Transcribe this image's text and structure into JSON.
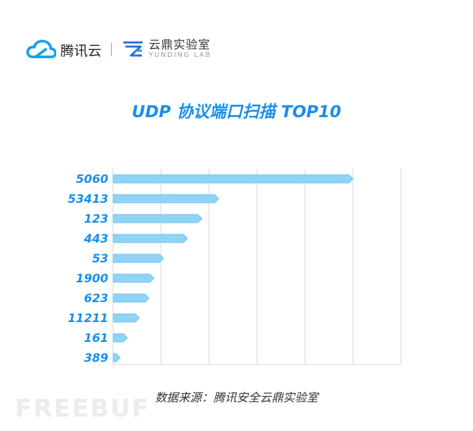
{
  "header": {
    "brand_name": "腾讯云",
    "lab_name_cn": "云鼎实验室",
    "lab_name_en": "YUNDING LAB"
  },
  "colors": {
    "bar": "#8fd3f7",
    "bar_stroke": "#6ec4f0",
    "title": "#1a8fe8",
    "tick_label": "#1a8fe8",
    "grid": "#d0d4da",
    "cloud_logo": "#1aa3e8",
    "lab_logo": "#2a6fd6"
  },
  "chart_data": {
    "type": "bar",
    "orientation": "horizontal",
    "title": "UDP 协议端口扫描 TOP10",
    "categories": [
      "5060",
      "53413",
      "123",
      "443",
      "53",
      "1900",
      "623",
      "11211",
      "161",
      "389"
    ],
    "values": [
      100,
      44,
      37,
      31,
      21,
      17,
      15,
      11,
      6,
      3
    ],
    "xlim": [
      0,
      120
    ],
    "grid": true,
    "xlabel": "",
    "ylabel": ""
  },
  "footer": {
    "source": "数据来源：腾讯安全云鼎实验室",
    "watermark": "FREEBUF"
  }
}
